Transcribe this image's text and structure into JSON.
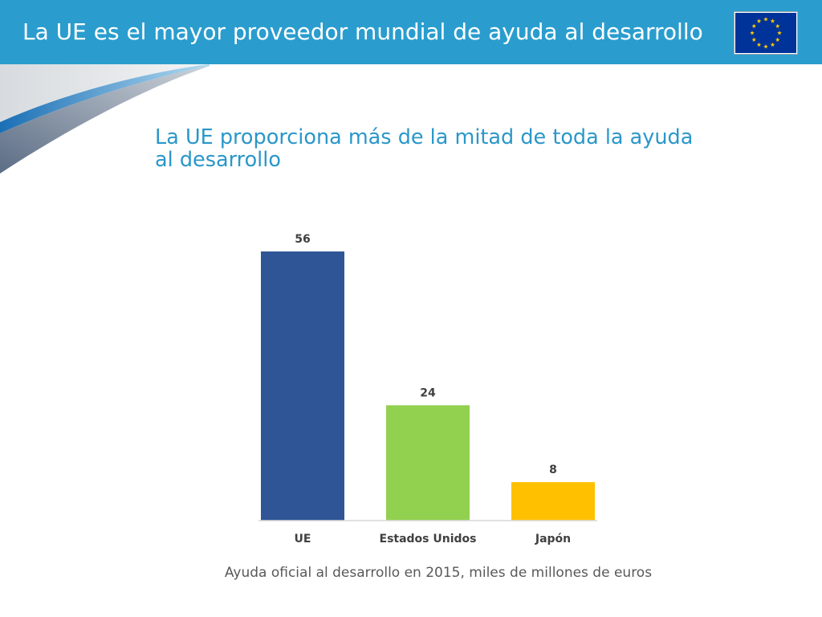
{
  "header": {
    "title": "La UE es el mayor proveedor mundial de ayuda al desarrollo",
    "background_color": "#2A9DCE",
    "flag": {
      "icon": "eu-flag-icon",
      "field_color": "#003399",
      "star_color": "#FFCC00"
    }
  },
  "slide": {
    "subtitle_lines": [
      "La UE proporciona más de la mitad de toda la ayuda",
      "al desarrollo"
    ],
    "subtitle_color": "#2A97C9"
  },
  "chart_data": {
    "type": "bar",
    "categories": [
      "UE",
      "Estados Unidos",
      "Japón"
    ],
    "values": [
      56,
      24,
      8
    ],
    "colors": [
      "#2F5597",
      "#92D050",
      "#FFC000"
    ],
    "show_data_labels": true,
    "show_y_axis": false,
    "grid": false,
    "legend": "none",
    "caption": "Ayuda oficial al desarrollo en 2015, miles de millones de euros"
  }
}
